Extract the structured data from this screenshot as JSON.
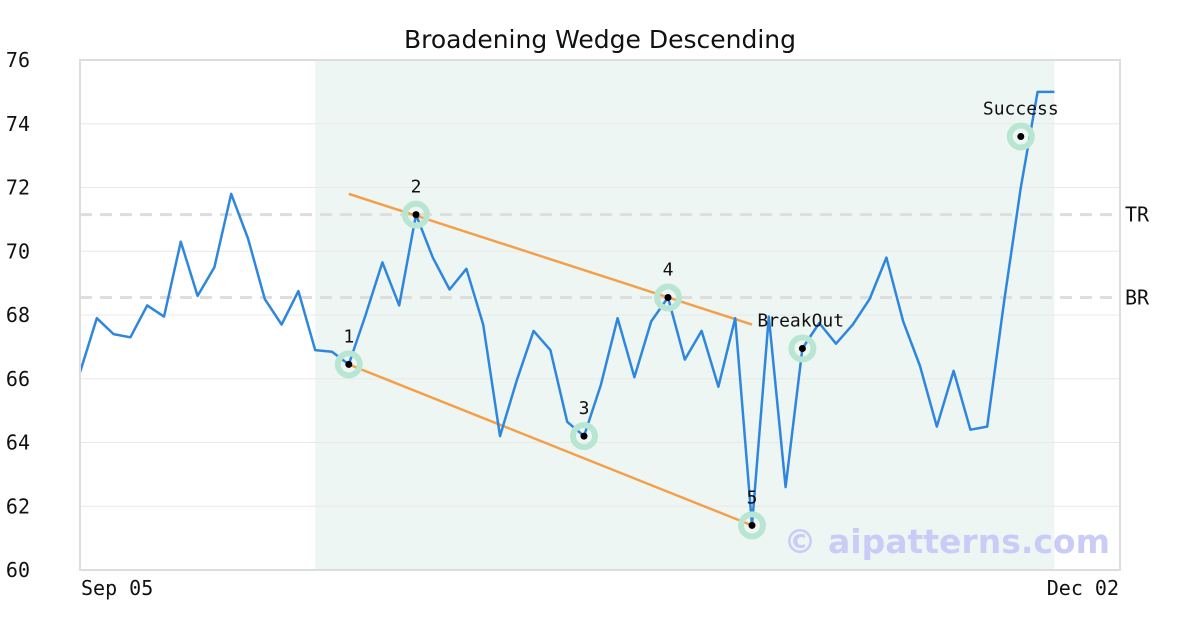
{
  "chart_data": {
    "type": "line",
    "title": "Broadening Wedge Descending",
    "ylim": [
      60,
      76
    ],
    "y_ticks": [
      60,
      62,
      64,
      66,
      68,
      70,
      72,
      74,
      76
    ],
    "x_range": [
      "Sep 05",
      "Dec 02"
    ],
    "x_tick_labels": [
      "Sep 05",
      "Dec 02"
    ],
    "grid": "horizontal",
    "colors": {
      "price": "#2e86de",
      "trendline": "#f4a04a",
      "pattern_zone": "#eef6f3",
      "levels": "#dddddd",
      "marker_ring": "#b9e6d2",
      "marker_dot": "#000000"
    },
    "pattern_zone": {
      "start_index": 14,
      "end_index": 58
    },
    "series": [
      {
        "values": [
          66.2,
          67.9,
          67.4,
          67.3,
          68.3,
          67.95,
          70.3,
          68.6,
          69.5,
          71.8,
          70.4,
          68.5,
          67.7,
          68.75,
          66.9,
          66.85,
          66.45,
          68.0,
          69.65,
          68.3,
          71.15,
          69.8,
          68.8,
          69.45,
          67.7,
          64.2,
          65.95,
          67.5,
          66.9,
          64.65,
          64.2,
          65.8,
          67.9,
          66.05,
          67.8,
          68.55,
          66.6,
          67.5,
          65.75,
          67.9,
          61.4,
          67.95,
          62.6,
          66.95,
          67.75,
          67.1,
          67.7,
          68.5,
          69.8,
          67.8,
          66.4,
          64.5,
          66.25,
          64.4,
          64.5,
          68.4,
          72.0,
          75.0,
          75.0
        ]
      }
    ],
    "trendlines": [
      {
        "from": [
          16,
          71.8
        ],
        "to": [
          40,
          67.7
        ]
      },
      {
        "from": [
          16,
          66.45
        ],
        "to": [
          40,
          61.4
        ]
      }
    ],
    "levels": [
      {
        "label": "TR",
        "value": 71.15
      },
      {
        "label": "BR",
        "value": 68.55
      }
    ],
    "annotations": [
      {
        "label": "1",
        "index": 16,
        "value": 66.45
      },
      {
        "label": "2",
        "index": 20,
        "value": 71.15
      },
      {
        "label": "3",
        "index": 30,
        "value": 64.2
      },
      {
        "label": "4",
        "index": 35,
        "value": 68.55
      },
      {
        "label": "5",
        "index": 40,
        "value": 61.4
      },
      {
        "label": "BreakOut",
        "index": 43,
        "value": 66.95
      },
      {
        "label": "Success",
        "index": 56,
        "value": 73.6
      }
    ]
  },
  "watermark": "© aipatterns.com"
}
